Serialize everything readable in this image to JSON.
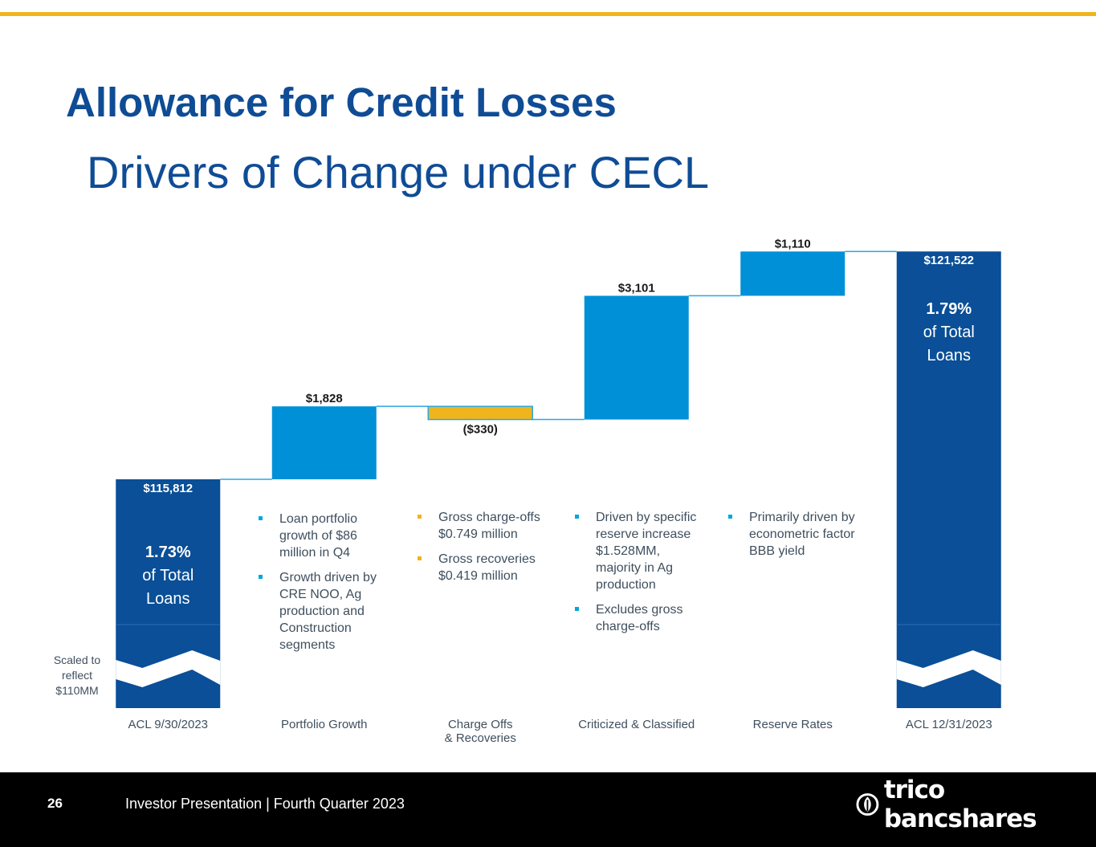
{
  "title": "Allowance for Credit Losses",
  "subtitle": "Drivers of Change under CECL",
  "chart_data": {
    "type": "waterfall",
    "categories": [
      "ACL  9/30/2023",
      "Portfolio Growth",
      "Charge Offs\n& Recoveries",
      "Criticized & Classified",
      "Reserve Rates",
      "ACL  12/31/2023"
    ],
    "values": [
      115812,
      1828,
      -330,
      3101,
      1110,
      121522
    ],
    "kinds": [
      "total",
      "delta",
      "delta",
      "delta",
      "delta",
      "total"
    ],
    "value_labels": [
      "$115,812",
      "$1,828",
      "($330)",
      "$3,101",
      "$1,110",
      "$121,522"
    ],
    "pct_labels": [
      {
        "index": 0,
        "pct": "1.73%",
        "line1": "of Total",
        "line2": "Loans"
      },
      {
        "index": 5,
        "pct": "1.79%",
        "line1": "of Total",
        "line2": "Loans"
      }
    ],
    "axis_break": true,
    "colors": {
      "total": "#0a4f97",
      "increase": "#0090d8",
      "decrease": "#f0b41c",
      "connector": "#29a8e0"
    }
  },
  "notes": {
    "portfolio_growth": [
      "Loan portfolio growth of $86 million in Q4",
      "Growth driven by CRE NOO, Ag production and Construction segments"
    ],
    "charge_offs": [
      "Gross charge-offs $0.749 million",
      "Gross recoveries $0.419 million"
    ],
    "criticized": [
      "Driven by specific reserve increase $1.528MM, majority in Ag production",
      "Excludes gross charge-offs"
    ],
    "reserve_rates": [
      "Primarily driven by econometric factor BBB yield"
    ],
    "scaled": "Scaled to reflect $110MM"
  },
  "footer": {
    "page_number": "26",
    "text": "Investor Presentation | Fourth Quarter 2023",
    "logo_text": "trico bancshares",
    "logo_icon": "trico-leaf-icon"
  }
}
